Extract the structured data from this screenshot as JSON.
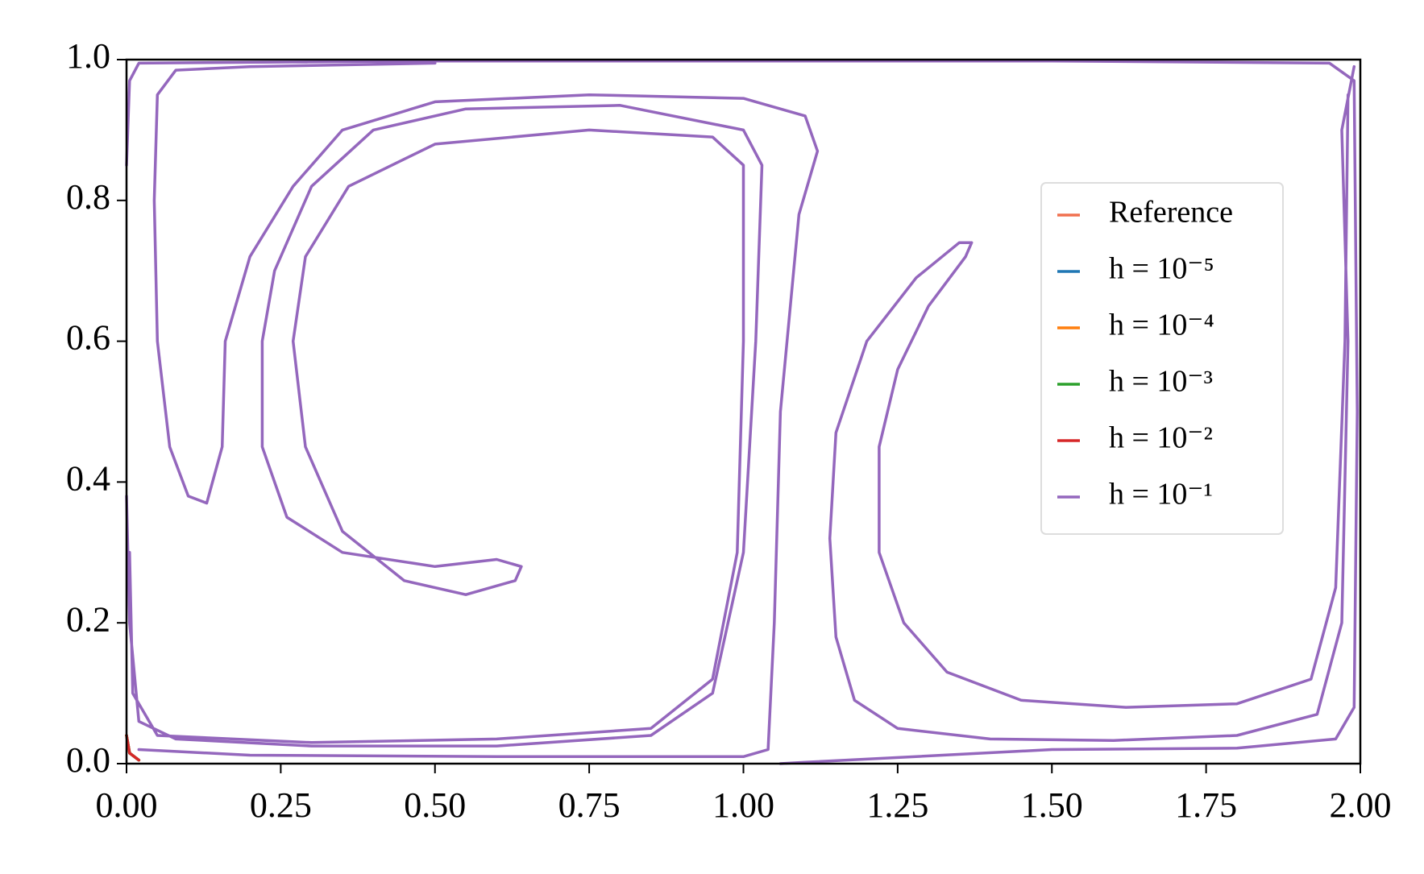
{
  "chart_data": {
    "type": "line",
    "xlim": [
      0,
      2
    ],
    "ylim": [
      0,
      1
    ],
    "xticks": [
      {
        "value": 0,
        "label": "0.00"
      },
      0.25,
      {
        "value": 0.5,
        "label": "0.50"
      },
      0.75,
      {
        "value": 1,
        "label": "1.00"
      },
      1.25,
      {
        "value": 1.5,
        "label": "1.50"
      },
      1.75,
      {
        "value": 2,
        "label": "2.00"
      }
    ],
    "yticks": [
      {
        "value": 0,
        "label": "0.0"
      },
      0.2,
      0.4,
      0.6,
      0.8,
      {
        "value": 1,
        "label": "1.0"
      }
    ],
    "legend": "upper right",
    "series": [
      {
        "name": "Reference",
        "color": "#f0704f",
        "x": [
          0.0,
          0.005,
          0.02
        ],
        "values": [
          0.04,
          0.015,
          0.005
        ]
      },
      {
        "name": "h = 10⁻⁵",
        "color": "#1f77b4",
        "x": [
          0.0,
          0.005,
          0.02
        ],
        "values": [
          0.04,
          0.015,
          0.005
        ]
      },
      {
        "name": "h = 10⁻⁴",
        "color": "#ff7f0e",
        "x": [
          0.0,
          0.005,
          0.02
        ],
        "values": [
          0.04,
          0.015,
          0.005
        ]
      },
      {
        "name": "h = 10⁻³",
        "color": "#2ca02c",
        "x": [
          0.0,
          0.005,
          0.02
        ],
        "values": [
          0.04,
          0.015,
          0.005
        ]
      },
      {
        "name": "h = 10⁻²",
        "color": "#d62728",
        "x": [
          0.0,
          0.005,
          0.02
        ],
        "values": [
          0.04,
          0.015,
          0.005
        ]
      },
      {
        "name": "h = 10⁻¹",
        "color": "#9467bd",
        "x": [
          0.0,
          0.005,
          0.02,
          0.5,
          1.0,
          1.5,
          1.95,
          1.99,
          1.995,
          1.99,
          1.96,
          1.8,
          1.5,
          1.1,
          1.06,
          null,
          1.37,
          1.35,
          1.28,
          1.2,
          1.15,
          1.14,
          1.15,
          1.18,
          1.25,
          1.4,
          1.6,
          1.8,
          1.93,
          1.97,
          1.98,
          1.97,
          1.99,
          null,
          1.37,
          1.36,
          1.3,
          1.25,
          1.22,
          1.22,
          1.26,
          1.33,
          1.45,
          1.62,
          1.8,
          1.92,
          1.96,
          1.975,
          1.98,
          null,
          0.0,
          0.005,
          0.02,
          0.08,
          0.3,
          0.6,
          0.85,
          0.95,
          1.0,
          1.02,
          1.03,
          1.0,
          0.8,
          0.55,
          0.4,
          0.3,
          0.24,
          0.22,
          0.22,
          0.26,
          0.35,
          0.5,
          0.6,
          0.64,
          0.63,
          0.55,
          0.45,
          0.35,
          0.29,
          0.27,
          0.29,
          0.36,
          0.5,
          0.75,
          0.95,
          1.0,
          1.0,
          0.99,
          0.95,
          0.85,
          0.6,
          0.3,
          0.05,
          0.01,
          0.005,
          null,
          0.02,
          0.2,
          0.6,
          1.0,
          1.04,
          1.05,
          1.06,
          1.09,
          1.12,
          1.1,
          1.0,
          0.75,
          0.5,
          0.35,
          0.27,
          0.2,
          0.16,
          0.155,
          0.13,
          0.1,
          0.07,
          0.05,
          0.045,
          0.05,
          0.08,
          0.2,
          0.5
        ],
        "values": [
          0.85,
          0.97,
          0.995,
          0.998,
          0.998,
          0.998,
          0.995,
          0.97,
          0.5,
          0.08,
          0.035,
          0.022,
          0.02,
          0.002,
          0.0,
          null,
          0.74,
          0.74,
          0.69,
          0.6,
          0.47,
          0.32,
          0.18,
          0.09,
          0.05,
          0.035,
          0.033,
          0.04,
          0.07,
          0.2,
          0.6,
          0.9,
          0.99,
          null,
          0.74,
          0.72,
          0.65,
          0.56,
          0.45,
          0.3,
          0.2,
          0.13,
          0.09,
          0.08,
          0.085,
          0.12,
          0.25,
          0.6,
          0.95,
          null,
          0.38,
          0.2,
          0.06,
          0.035,
          0.025,
          0.025,
          0.04,
          0.1,
          0.3,
          0.6,
          0.85,
          0.9,
          0.935,
          0.93,
          0.9,
          0.82,
          0.7,
          0.6,
          0.45,
          0.35,
          0.3,
          0.28,
          0.29,
          0.28,
          0.26,
          0.24,
          0.26,
          0.33,
          0.45,
          0.6,
          0.72,
          0.82,
          0.88,
          0.9,
          0.89,
          0.85,
          0.6,
          0.3,
          0.12,
          0.05,
          0.035,
          0.03,
          0.04,
          0.1,
          0.3,
          null,
          0.02,
          0.012,
          0.01,
          0.01,
          0.02,
          0.2,
          0.5,
          0.78,
          0.87,
          0.92,
          0.945,
          0.95,
          0.94,
          0.9,
          0.82,
          0.72,
          0.6,
          0.45,
          0.37,
          0.38,
          0.45,
          0.6,
          0.8,
          0.95,
          0.985,
          0.99,
          0.995
        ]
      }
    ]
  }
}
